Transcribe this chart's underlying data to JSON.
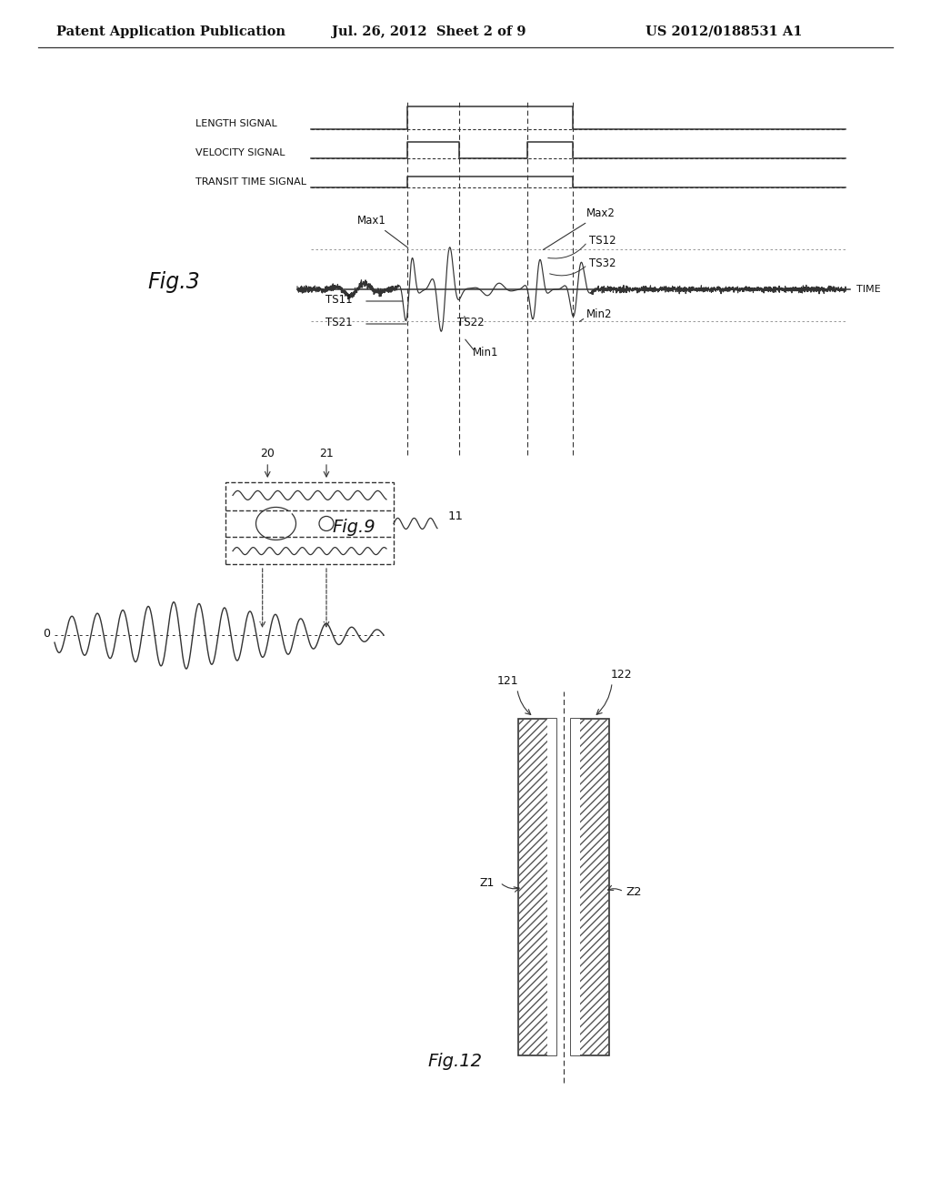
{
  "header_left": "Patent Application Publication",
  "header_mid": "Jul. 26, 2012  Sheet 2 of 9",
  "header_right": "US 2012/0188531 A1",
  "fig3_label": "Fig.3",
  "fig9_label": "Fig.9",
  "fig12_label": "Fig.12",
  "bg_color": "#ffffff",
  "line_color": "#333333",
  "text_color": "#111111"
}
